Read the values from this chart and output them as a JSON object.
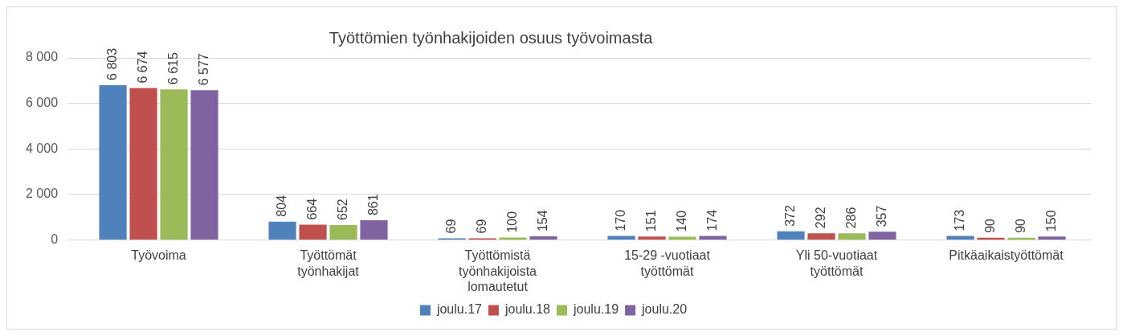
{
  "chart_data": {
    "type": "bar",
    "title": "Työttömien työnhakijoiden osuus työvoimasta",
    "categories": [
      "Työvoima",
      "Työttömät\ntyönhakijat",
      "Työttömistä\ntyönhakijoista\nlomautetut",
      "15-29 -vuotiaat\ntyöttömät",
      "Yli 50-vuotiaat\ntyöttömät",
      "Pitkäaikaistyöttömät"
    ],
    "series": [
      {
        "name": "joulu.17",
        "color": "#4f81bd",
        "values": [
          6803,
          804,
          69,
          170,
          372,
          173
        ],
        "value_labels": [
          "6 803",
          "804",
          "69",
          "170",
          "372",
          "173"
        ]
      },
      {
        "name": "joulu.18",
        "color": "#c0504d",
        "values": [
          6674,
          664,
          69,
          151,
          292,
          90
        ],
        "value_labels": [
          "6 674",
          "664",
          "69",
          "151",
          "292",
          "90"
        ]
      },
      {
        "name": "joulu.19",
        "color": "#9bbb59",
        "values": [
          6615,
          652,
          100,
          140,
          286,
          90
        ],
        "value_labels": [
          "6 615",
          "652",
          "100",
          "140",
          "286",
          "90"
        ]
      },
      {
        "name": "joulu.20",
        "color": "#8064a2",
        "values": [
          6577,
          861,
          154,
          174,
          357,
          150
        ],
        "value_labels": [
          "6 577",
          "861",
          "154",
          "174",
          "357",
          "150"
        ]
      }
    ],
    "ylim": [
      0,
      8000
    ],
    "yticks": [
      {
        "value": 0,
        "label": "0"
      },
      {
        "value": 2000,
        "label": "2 000"
      },
      {
        "value": 4000,
        "label": "4 000"
      },
      {
        "value": 6000,
        "label": "6 000"
      },
      {
        "value": 8000,
        "label": "8 000"
      }
    ],
    "grid": "y",
    "legend": "bottom"
  }
}
